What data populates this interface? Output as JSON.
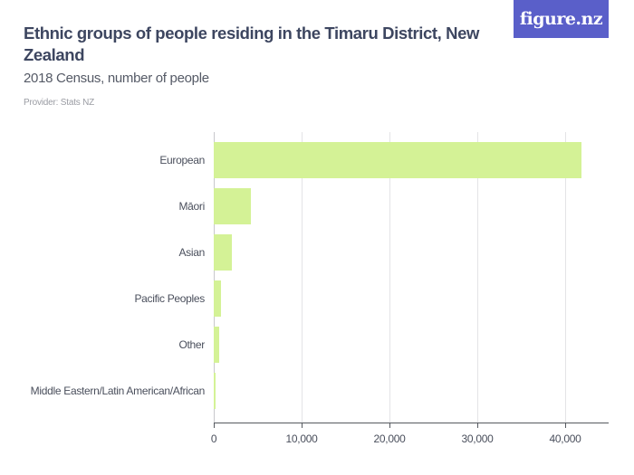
{
  "header": {
    "title": "Ethnic groups of people residing in the Timaru District, New Zealand",
    "subtitle": "2018 Census, number of people",
    "provider": "Provider: Stats NZ",
    "logo": "figure.nz"
  },
  "colors": {
    "bar": "#d4f296",
    "logo_bg": "#5a5fc9",
    "title": "#3d4660"
  },
  "axis": {
    "ticks": [
      "0",
      "10,000",
      "20,000",
      "30,000",
      "40,000"
    ]
  },
  "chart_data": {
    "type": "bar",
    "orientation": "horizontal",
    "title": "Ethnic groups of people residing in the Timaru District, New Zealand",
    "subtitle": "2018 Census, number of people",
    "categories": [
      "European",
      "Māori",
      "Asian",
      "Pacific Peoples",
      "Other",
      "Middle Eastern/Latin American/African"
    ],
    "values": [
      41900,
      4200,
      2050,
      830,
      620,
      200
    ],
    "xlabel": "",
    "ylabel": "",
    "xlim": [
      0,
      45000
    ],
    "xticks": [
      0,
      10000,
      20000,
      30000,
      40000
    ],
    "grid": true,
    "legend": null
  }
}
